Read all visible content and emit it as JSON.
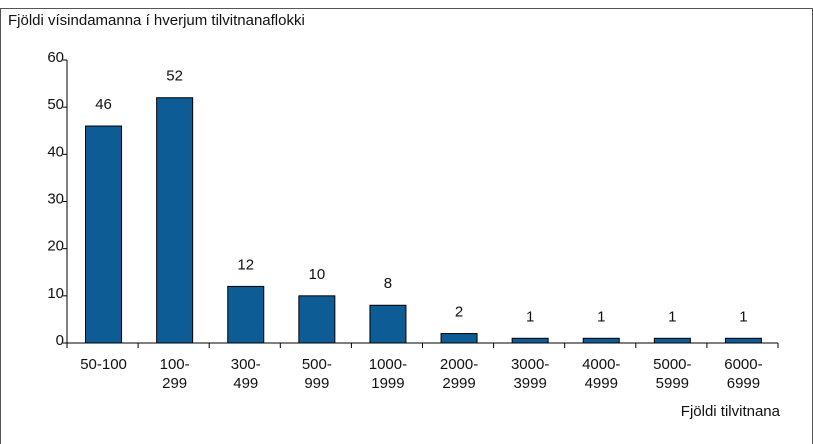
{
  "chart_data": {
    "type": "bar",
    "title": "Fjöldi vísindamanna í hverjum tilvitnanaflokki",
    "x_label": "Fjöldi tilvitnana",
    "categories": [
      "50-100",
      "100-299",
      "300-499",
      "500-999",
      "1000-1999",
      "2000-2999",
      "3000-3999",
      "4000-4999",
      "5000-5999",
      "6000-6999"
    ],
    "values": [
      46,
      52,
      12,
      10,
      8,
      2,
      1,
      1,
      1,
      1
    ],
    "color": "#0e5c96",
    "ylim": [
      0,
      60
    ],
    "yticks": [
      0,
      10,
      20,
      30,
      40,
      50,
      60
    ],
    "grid": false
  }
}
